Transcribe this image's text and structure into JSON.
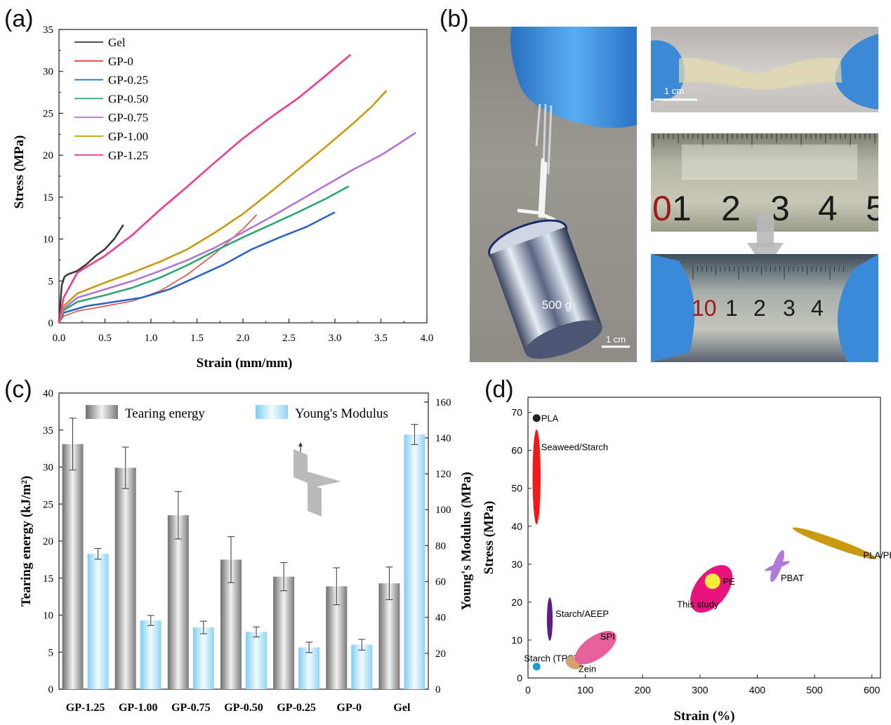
{
  "panel_labels": {
    "a": "(a)",
    "b": "(b)",
    "c": "(c)",
    "d": "(d)"
  },
  "colors": {
    "Gel": "#3a3a3a",
    "GP-0": "#e8403c",
    "GP-0.25": "#2b63c6",
    "GP-0.50": "#2aa871",
    "GP-0.75": "#b274d8",
    "GP-1.00": "#c79a12",
    "GP-1.25": "#ee3a8d",
    "tear_bar": "#9a9a9a",
    "modulus_bar": "#aee0f8",
    "glove": "#3a8fd8"
  },
  "photos": {
    "weight_label": "500 g",
    "scale_left": "1 cm",
    "scale_top_right": "1 cm",
    "ruler_top_numbers": [
      "0",
      "1",
      "2",
      "3",
      "4",
      "5"
    ],
    "ruler_bottom_numbers": [
      "10",
      "1",
      "2",
      "3",
      "4"
    ]
  },
  "chart_data": [
    {
      "id": "a",
      "type": "line",
      "title": "",
      "xlabel": "Strain (mm/mm)",
      "ylabel": "Stress (MPa)",
      "xlim": [
        0,
        4.0
      ],
      "ylim": [
        0,
        35
      ],
      "xticks": [
        "0.0",
        "0.5",
        "1.0",
        "1.5",
        "2.0",
        "2.5",
        "3.0",
        "3.5",
        "4.0"
      ],
      "yticks": [
        "0",
        "5",
        "10",
        "15",
        "20",
        "25",
        "30",
        "35"
      ],
      "legend_position": "top-left",
      "series": [
        {
          "name": "Gel",
          "x": [
            0,
            0.03,
            0.06,
            0.1,
            0.2,
            0.3,
            0.4,
            0.5,
            0.6,
            0.7
          ],
          "y": [
            0,
            4.5,
            5.5,
            5.8,
            6.2,
            7.0,
            8.0,
            8.8,
            10.0,
            11.7
          ]
        },
        {
          "name": "GP-0",
          "x": [
            0,
            0.05,
            0.2,
            0.5,
            0.8,
            1.1,
            1.4,
            1.7,
            2.0,
            2.15
          ],
          "y": [
            0,
            0.8,
            1.4,
            2.0,
            2.6,
            3.8,
            5.8,
            8.3,
            11.2,
            12.9
          ]
        },
        {
          "name": "GP-0.25",
          "x": [
            0,
            0.05,
            0.3,
            0.6,
            0.9,
            1.2,
            1.5,
            1.8,
            2.1,
            2.4,
            2.7,
            3.0
          ],
          "y": [
            0,
            1.2,
            2.0,
            2.5,
            3.0,
            4.0,
            5.5,
            7.0,
            8.8,
            10.2,
            11.5,
            13.2
          ]
        },
        {
          "name": "GP-0.50",
          "x": [
            0,
            0.05,
            0.2,
            0.5,
            0.8,
            1.1,
            1.4,
            1.7,
            2.0,
            2.3,
            2.6,
            2.9,
            3.15
          ],
          "y": [
            0,
            1.5,
            2.5,
            3.3,
            4.2,
            5.4,
            6.9,
            8.6,
            10.2,
            11.7,
            13.2,
            14.8,
            16.3
          ]
        },
        {
          "name": "GP-0.75",
          "x": [
            0,
            0.05,
            0.2,
            0.5,
            0.8,
            1.1,
            1.4,
            1.7,
            2.0,
            2.3,
            2.6,
            2.9,
            3.2,
            3.5,
            3.7,
            3.88
          ],
          "y": [
            0,
            1.7,
            3.0,
            4.0,
            5.0,
            6.2,
            7.5,
            9.0,
            10.8,
            12.6,
            14.5,
            16.4,
            18.3,
            20.0,
            21.4,
            22.7
          ]
        },
        {
          "name": "GP-1.00",
          "x": [
            0,
            0.05,
            0.2,
            0.5,
            0.8,
            1.1,
            1.4,
            1.7,
            2.0,
            2.3,
            2.6,
            2.9,
            3.2,
            3.4,
            3.56
          ],
          "y": [
            0,
            2.0,
            3.5,
            4.8,
            6.0,
            7.3,
            8.8,
            10.8,
            13.0,
            15.6,
            18.3,
            21.0,
            23.8,
            25.8,
            27.7
          ]
        },
        {
          "name": "GP-1.25",
          "x": [
            0,
            0.05,
            0.2,
            0.5,
            0.8,
            1.1,
            1.4,
            1.7,
            2.0,
            2.3,
            2.6,
            2.9,
            3.17
          ],
          "y": [
            0,
            3.0,
            6.0,
            8.0,
            10.5,
            13.5,
            16.3,
            19.2,
            22.0,
            24.5,
            26.8,
            29.5,
            32.0
          ]
        }
      ]
    },
    {
      "id": "c",
      "type": "bar",
      "categories": [
        "GP-1.25",
        "GP-1.00",
        "GP-0.75",
        "GP-0.50",
        "GP-0.25",
        "GP-0",
        "Gel"
      ],
      "ylabel": "Tearing energy (kJ/m²)",
      "y2label": "Young's Modulus (MPa)",
      "ylim": [
        0,
        40
      ],
      "y2lim": [
        0,
        165
      ],
      "yticks": [
        "0",
        "5",
        "10",
        "15",
        "20",
        "25",
        "30",
        "35",
        "40"
      ],
      "y2ticks": [
        "0",
        "20",
        "40",
        "60",
        "80",
        "100",
        "120",
        "140",
        "160"
      ],
      "legend_position": "top",
      "series": [
        {
          "name": "Tearing energy",
          "axis": "left",
          "values": [
            33.1,
            29.9,
            23.5,
            17.5,
            15.2,
            13.9,
            14.3
          ],
          "errors": [
            3.5,
            2.8,
            3.2,
            3.1,
            1.9,
            2.5,
            2.2
          ]
        },
        {
          "name": "Young's Modulus",
          "axis": "right",
          "values": [
            75.4,
            38.3,
            34.4,
            31.9,
            23.3,
            24.8,
            141.9
          ],
          "errors": [
            3.0,
            2.8,
            3.5,
            2.8,
            2.9,
            3.0,
            5.6
          ]
        }
      ]
    },
    {
      "id": "d",
      "type": "scatter",
      "xlabel": "Strain (%)",
      "ylabel": "Stress (MPa)",
      "xlim": [
        0,
        615
      ],
      "ylim": [
        0,
        74
      ],
      "xticks": [
        "0",
        "100",
        "200",
        "300",
        "400",
        "500",
        "600"
      ],
      "yticks": [
        "0",
        "10",
        "20",
        "30",
        "40",
        "50",
        "60",
        "70"
      ],
      "points": [
        {
          "label": "PLA",
          "x": 15,
          "y": 68.5,
          "kind": "dot",
          "color": "#222222"
        },
        {
          "label": "Seaweed/Starch",
          "x": 15,
          "y": 53,
          "kind": "ellipse",
          "color": "#f21818"
        },
        {
          "label": "Starch/AEEP",
          "x": 38,
          "y": 15.5,
          "kind": "ellipse",
          "color": "#5a1e8c"
        },
        {
          "label": "Starch (TPS)",
          "x": 15,
          "y": 3,
          "kind": "dot",
          "color": "#1e9ad8"
        },
        {
          "label": "Zein",
          "x": 80,
          "y": 4,
          "kind": "ellipse",
          "color": "#d4a070"
        },
        {
          "label": "SPI",
          "x": 118,
          "y": 8,
          "kind": "ellipse",
          "color": "#e6609a"
        },
        {
          "label": "This study",
          "x": 320,
          "y": 23.5,
          "kind": "ellipse",
          "color": "#e8147c"
        },
        {
          "label": "PE",
          "x": 322,
          "y": 25.5,
          "kind": "dot",
          "color": "#f5ec3c"
        },
        {
          "label": "PBAT",
          "x": 435,
          "y": 29.5,
          "kind": "ellipse",
          "color": "#b27ad8"
        },
        {
          "label": "PLA/PBAT",
          "x": 535,
          "y": 35.5,
          "kind": "ellipse",
          "color": "#c89a12"
        }
      ]
    }
  ]
}
